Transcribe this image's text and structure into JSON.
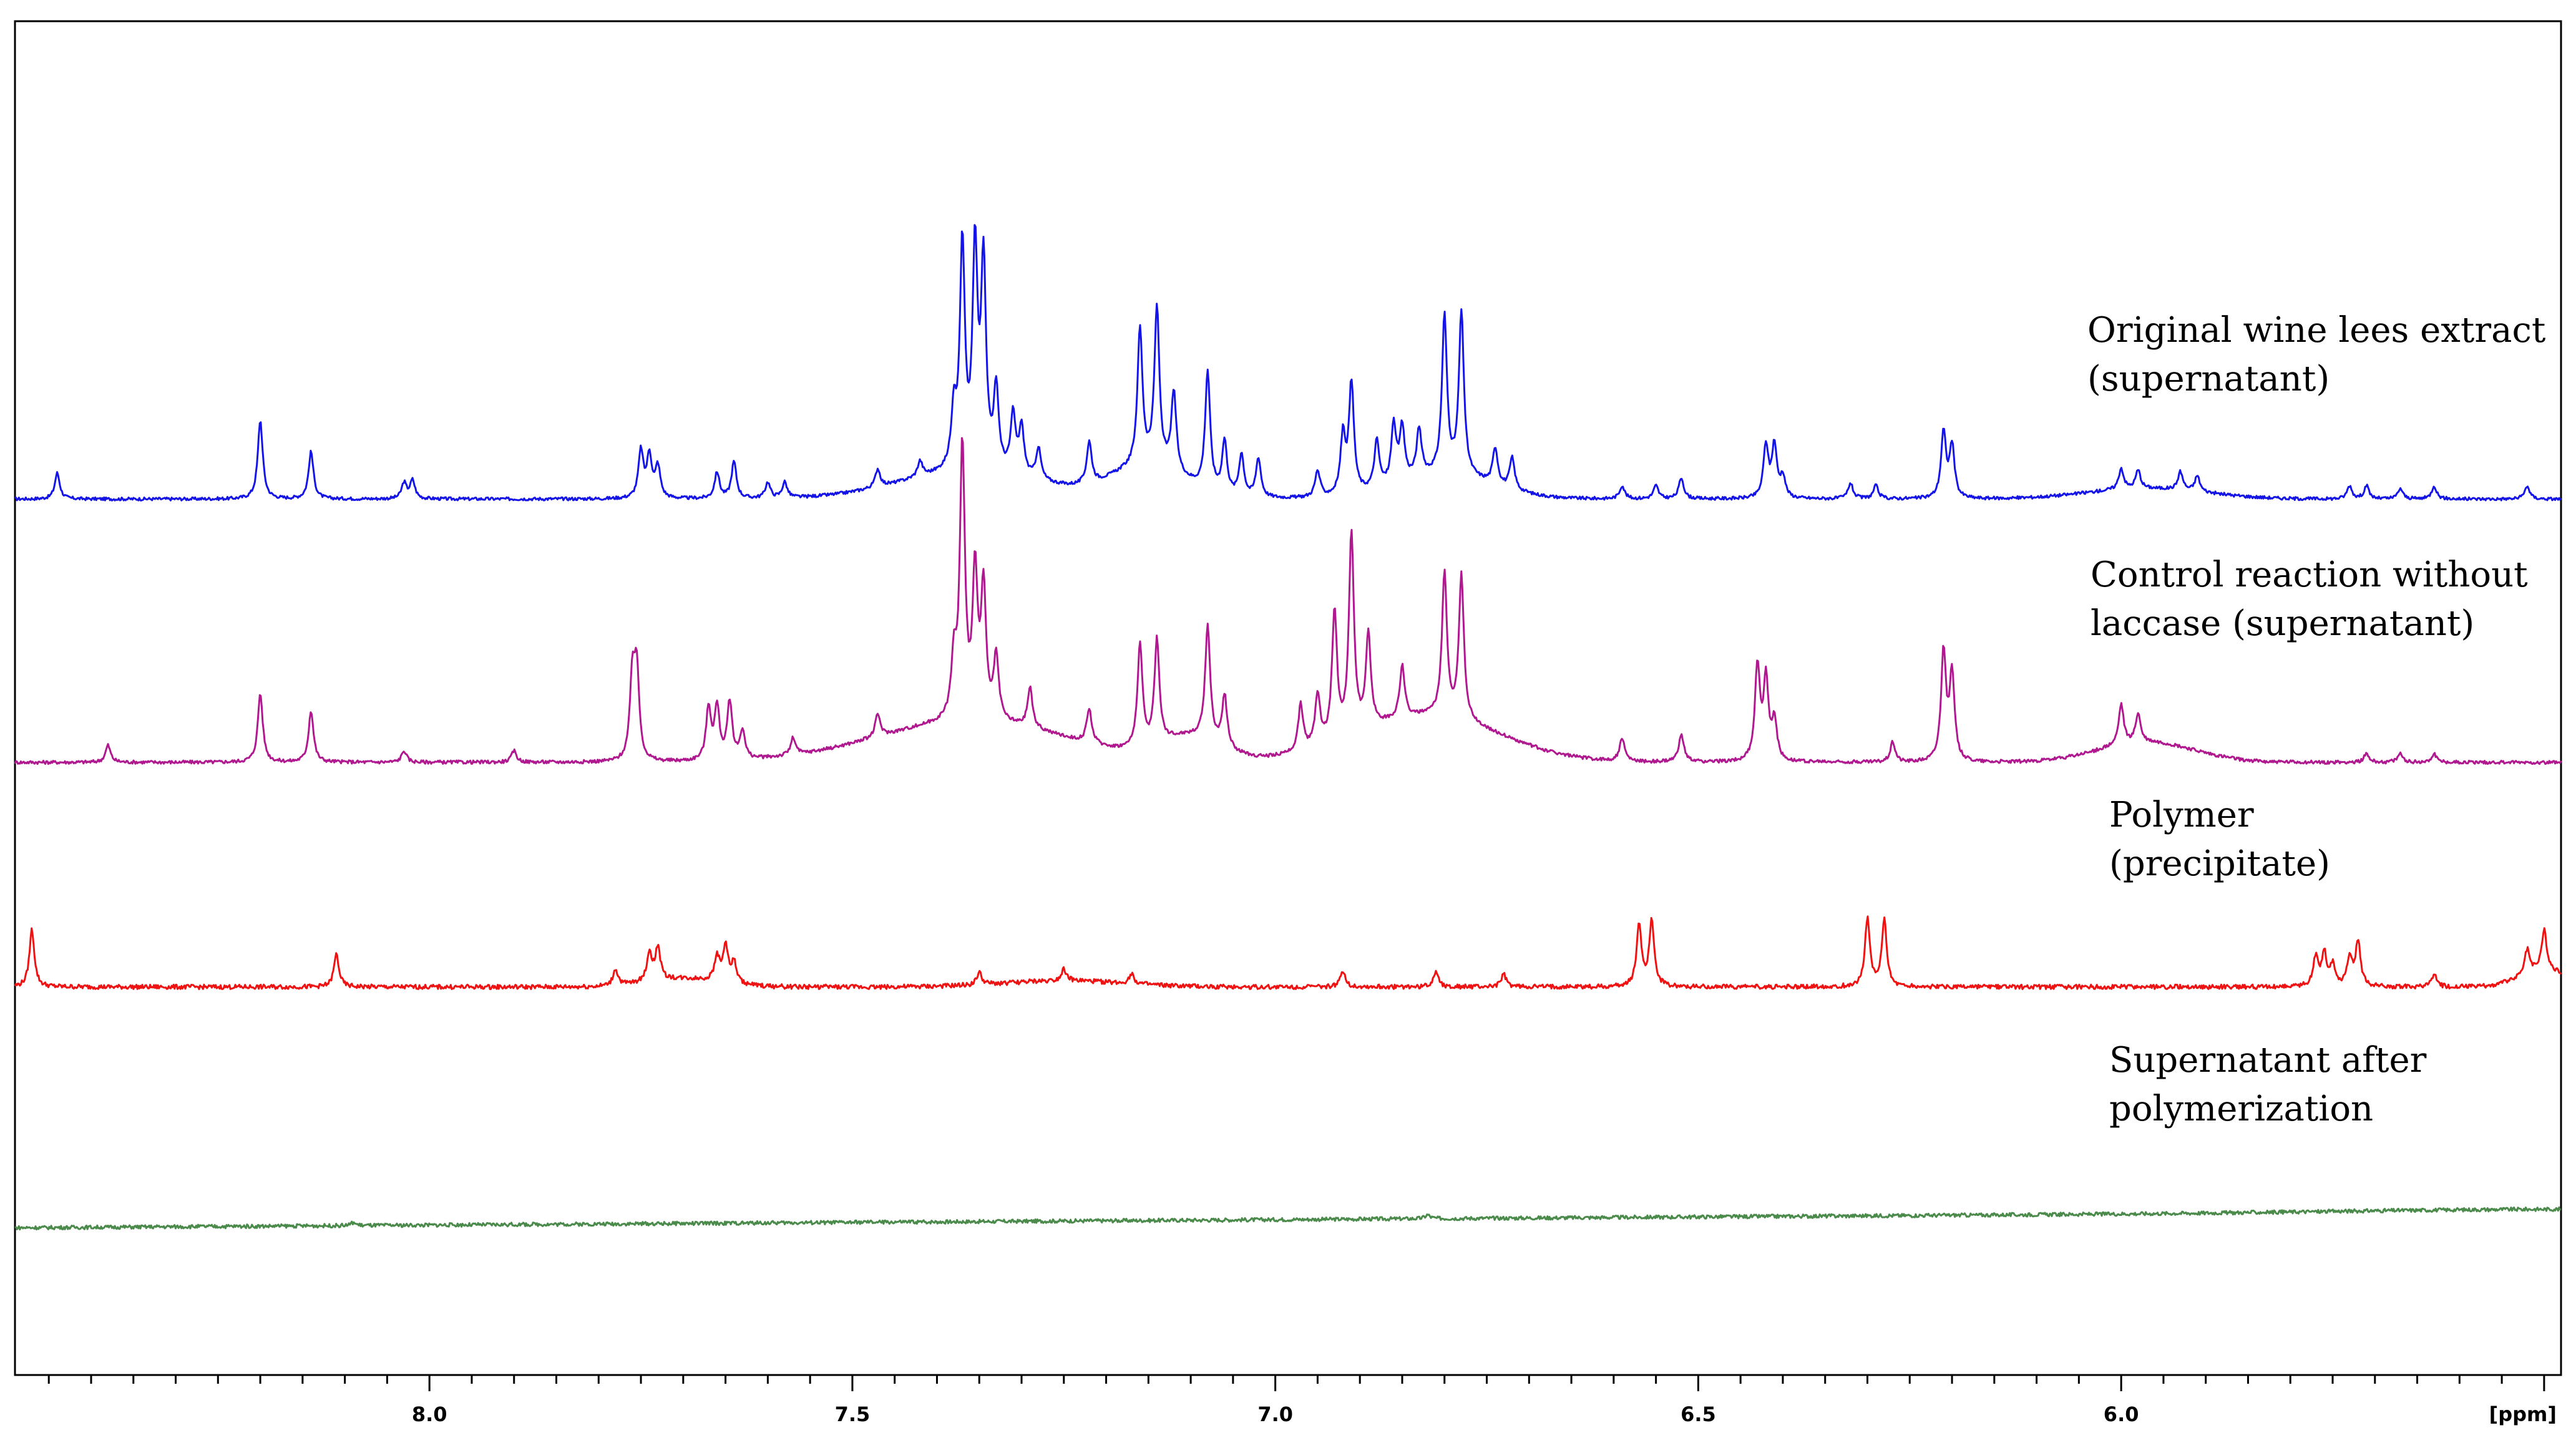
{
  "chart_data": {
    "type": "line",
    "title": "",
    "xlabel": "[ppm]",
    "ylabel": "",
    "xlim": [
      8.49,
      5.48
    ],
    "x_reversed": true,
    "grid": false,
    "legend": "none",
    "x_ticks": [
      "8.0",
      "7.5",
      "7.0",
      "6.5",
      "6.0"
    ],
    "series": [
      {
        "name": "Original wine lees extract (supernatant)",
        "label_lines": [
          "Original wine lees extract",
          "(supernatant)"
        ],
        "color": "#1414e6",
        "peaks": [
          [
            8.44,
            0.1
          ],
          [
            8.2,
            0.3
          ],
          [
            8.14,
            0.18
          ],
          [
            8.03,
            0.06
          ],
          [
            8.02,
            0.07
          ],
          [
            7.75,
            0.18
          ],
          [
            7.74,
            0.16
          ],
          [
            7.73,
            0.12
          ],
          [
            7.66,
            0.1
          ],
          [
            7.64,
            0.14
          ],
          [
            7.6,
            0.06
          ],
          [
            7.58,
            0.06
          ],
          [
            7.47,
            0.07
          ],
          [
            7.42,
            0.06
          ],
          [
            7.38,
            0.22
          ],
          [
            7.37,
            0.85
          ],
          [
            7.355,
            0.82
          ],
          [
            7.345,
            0.78
          ],
          [
            7.33,
            0.3
          ],
          [
            7.31,
            0.22
          ],
          [
            7.3,
            0.18
          ],
          [
            7.28,
            0.12
          ],
          [
            7.22,
            0.16
          ],
          [
            7.16,
            0.52
          ],
          [
            7.14,
            0.6
          ],
          [
            7.12,
            0.3
          ],
          [
            7.08,
            0.45
          ],
          [
            7.06,
            0.2
          ],
          [
            7.04,
            0.16
          ],
          [
            7.02,
            0.15
          ],
          [
            6.95,
            0.1
          ],
          [
            6.92,
            0.22
          ],
          [
            6.91,
            0.42
          ],
          [
            6.88,
            0.18
          ],
          [
            6.86,
            0.22
          ],
          [
            6.85,
            0.2
          ],
          [
            6.83,
            0.18
          ],
          [
            6.8,
            0.6
          ],
          [
            6.78,
            0.62
          ],
          [
            6.74,
            0.14
          ],
          [
            6.72,
            0.12
          ],
          [
            6.59,
            0.05
          ],
          [
            6.55,
            0.05
          ],
          [
            6.52,
            0.08
          ],
          [
            6.42,
            0.2
          ],
          [
            6.41,
            0.2
          ],
          [
            6.4,
            0.08
          ],
          [
            6.32,
            0.06
          ],
          [
            6.29,
            0.05
          ],
          [
            6.21,
            0.25
          ],
          [
            6.2,
            0.2
          ],
          [
            6.0,
            0.08
          ],
          [
            5.98,
            0.07
          ],
          [
            5.93,
            0.07
          ],
          [
            5.91,
            0.06
          ],
          [
            5.73,
            0.05
          ],
          [
            5.71,
            0.05
          ],
          [
            5.67,
            0.04
          ],
          [
            5.63,
            0.05
          ],
          [
            5.52,
            0.05
          ]
        ],
        "bumps": [
          [
            7.36,
            0.12,
            0.1
          ],
          [
            7.15,
            0.06,
            0.12
          ],
          [
            6.8,
            0.08,
            0.09
          ],
          [
            5.97,
            0.1,
            0.04
          ]
        ]
      },
      {
        "name": "Control reaction without laccase (supernatant)",
        "label_lines": [
          "Control reaction without",
          "laccase (supernatant)"
        ],
        "color": "#b01890",
        "peaks": [
          [
            8.38,
            0.06
          ],
          [
            8.2,
            0.24
          ],
          [
            8.14,
            0.18
          ],
          [
            8.03,
            0.04
          ],
          [
            7.9,
            0.04
          ],
          [
            7.76,
            0.28
          ],
          [
            7.755,
            0.3
          ],
          [
            7.67,
            0.18
          ],
          [
            7.66,
            0.18
          ],
          [
            7.645,
            0.2
          ],
          [
            7.63,
            0.1
          ],
          [
            7.57,
            0.06
          ],
          [
            7.47,
            0.08
          ],
          [
            7.38,
            0.2
          ],
          [
            7.37,
            0.95
          ],
          [
            7.355,
            0.5
          ],
          [
            7.345,
            0.45
          ],
          [
            7.33,
            0.22
          ],
          [
            7.29,
            0.14
          ],
          [
            7.22,
            0.12
          ],
          [
            7.16,
            0.36
          ],
          [
            7.14,
            0.36
          ],
          [
            7.08,
            0.4
          ],
          [
            7.06,
            0.18
          ],
          [
            6.97,
            0.16
          ],
          [
            6.95,
            0.18
          ],
          [
            6.93,
            0.45
          ],
          [
            6.91,
            0.7
          ],
          [
            6.89,
            0.32
          ],
          [
            6.85,
            0.18
          ],
          [
            6.8,
            0.5
          ],
          [
            6.78,
            0.5
          ],
          [
            6.59,
            0.08
          ],
          [
            6.52,
            0.1
          ],
          [
            6.43,
            0.33
          ],
          [
            6.42,
            0.28
          ],
          [
            6.41,
            0.14
          ],
          [
            6.27,
            0.07
          ],
          [
            6.21,
            0.38
          ],
          [
            6.2,
            0.3
          ],
          [
            6.0,
            0.14
          ],
          [
            5.98,
            0.1
          ],
          [
            5.71,
            0.03
          ],
          [
            5.67,
            0.03
          ],
          [
            5.63,
            0.03
          ]
        ],
        "bumps": [
          [
            7.36,
            0.16,
            0.14
          ],
          [
            7.1,
            0.05,
            0.08
          ],
          [
            6.82,
            0.12,
            0.16
          ],
          [
            5.97,
            0.08,
            0.07
          ]
        ]
      },
      {
        "name": "Polymer (precipitate)",
        "label_lines": [
          "Polymer",
          "(precipitate)"
        ],
        "color": "#ee1212",
        "peaks": [
          [
            8.47,
            0.28
          ],
          [
            8.11,
            0.16
          ],
          [
            7.78,
            0.08
          ],
          [
            7.74,
            0.14
          ],
          [
            7.73,
            0.16
          ],
          [
            7.66,
            0.12
          ],
          [
            7.65,
            0.18
          ],
          [
            7.64,
            0.1
          ],
          [
            7.35,
            0.06
          ],
          [
            7.25,
            0.06
          ],
          [
            7.17,
            0.05
          ],
          [
            6.92,
            0.08
          ],
          [
            6.81,
            0.08
          ],
          [
            6.73,
            0.06
          ],
          [
            6.57,
            0.3
          ],
          [
            6.555,
            0.32
          ],
          [
            6.3,
            0.33
          ],
          [
            6.28,
            0.32
          ],
          [
            5.77,
            0.14
          ],
          [
            5.76,
            0.16
          ],
          [
            5.75,
            0.1
          ],
          [
            5.73,
            0.14
          ],
          [
            5.72,
            0.22
          ],
          [
            5.63,
            0.06
          ],
          [
            5.52,
            0.12
          ],
          [
            5.5,
            0.2
          ]
        ],
        "bumps": [
          [
            7.7,
            0.06,
            0.04
          ],
          [
            7.25,
            0.1,
            0.03
          ],
          [
            5.5,
            0.04,
            0.08
          ]
        ]
      },
      {
        "name": "Supernatant after polymerization",
        "label_lines": [
          "Supernatant after",
          "polymerization"
        ],
        "color": "#4a8a4a",
        "peaks": [
          [
            8.09,
            0.04
          ],
          [
            6.82,
            0.05
          ]
        ],
        "bumps": [
          [
            5.55,
            0.3,
            0.03
          ]
        ]
      }
    ]
  }
}
